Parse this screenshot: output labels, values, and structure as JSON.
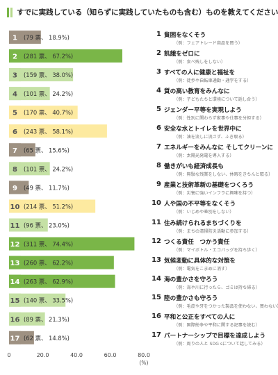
{
  "title": "すでに実践している（知らずに実践していたものも含む）ものを教えてください",
  "colors": {
    "green_dark": "#7ab648",
    "green_light": "#c5e1a5",
    "yellow": "#fdeaa0",
    "gray": "#9e9182",
    "label_box_green": "#7ab648"
  },
  "chart_data": {
    "type": "bar",
    "orientation": "horizontal",
    "categories": [
      "1",
      "2",
      "3",
      "4",
      "5",
      "6",
      "7",
      "8",
      "9",
      "10",
      "11",
      "12",
      "13",
      "14",
      "15",
      "16",
      "17"
    ],
    "votes": [
      79,
      281,
      159,
      101,
      170,
      243,
      65,
      101,
      49,
      214,
      96,
      311,
      260,
      263,
      140,
      89,
      62
    ],
    "values": [
      18.9,
      67.2,
      38.0,
      24.2,
      40.7,
      58.1,
      15.6,
      24.2,
      11.7,
      51.2,
      23.0,
      74.4,
      62.2,
      62.9,
      33.5,
      21.3,
      14.8
    ],
    "bar_labels": [
      "(79 票、 18.9%)",
      "(281 票、 67.2%)",
      "(159 票、 38.0%)",
      "(101 票、 24.2%)",
      "(170 票、 40.7%)",
      "(243 票、 58.1%)",
      "(65 票、 15.6%)",
      "(101 票、 24.2%)",
      "(49 票、 11.7%)",
      "(214 票、 51.2%)",
      "(96 票、 23.0%)",
      "(311 票、 74.4%)",
      "(260 票、 62.2%)",
      "(263 票、 62.9%)",
      "(140 票、 33.5%)",
      "(89 票、 21.3%)",
      "(62 票、 14.8%)"
    ],
    "bar_colors": [
      "#9e9182",
      "#7ab648",
      "#c5e1a5",
      "#c5e1a5",
      "#fdeaa0",
      "#fdeaa0",
      "#9e9182",
      "#c5e1a5",
      "#9e9182",
      "#fdeaa0",
      "#c5e1a5",
      "#7ab648",
      "#7ab648",
      "#7ab648",
      "#c5e1a5",
      "#c5e1a5",
      "#9e9182"
    ],
    "label_box_colors": [
      "#9e9182",
      "#7ab648",
      "#c5e1a5",
      "#c5e1a5",
      "#fdeaa0",
      "#fdeaa0",
      "#9e9182",
      "#c5e1a5",
      "#9e9182",
      "#fdeaa0",
      "#c5e1a5",
      "#7ab648",
      "#7ab648",
      "#7ab648",
      "#c5e1a5",
      "#c5e1a5",
      "#9e9182"
    ],
    "xlim": [
      0,
      80
    ],
    "xticks": [
      "0",
      "20.0",
      "40.0",
      "60.0",
      "80.0"
    ],
    "xlabel": "(%)",
    "grid": false
  },
  "goals": [
    {
      "num": "1",
      "title": "貧困をなくそう",
      "example": "（例：フェアトレード商品を買う）"
    },
    {
      "num": "2",
      "title": "飢餓をゼロに",
      "example": "（例：食べ残しをしない）"
    },
    {
      "num": "3",
      "title": "すべての人に健康と福祉を",
      "example": "（例：徒歩や自転車通勤・通学をする）"
    },
    {
      "num": "4",
      "title": "質の高い教育をみんなに",
      "example": "（例：子どもたちと環境について話し合う）"
    },
    {
      "num": "5",
      "title": "ジェンダー平等を実現しよう",
      "example": "（例：性別に関わらず家事や仕事を分担する）"
    },
    {
      "num": "6",
      "title": "安全な水とトイレを世界中に",
      "example": "（例：油を流しに流さず、ふき取る）"
    },
    {
      "num": "7",
      "title": "エネルギーをみんなに そしてクリーンに",
      "example": "（例：太陽光発電を導入する）"
    },
    {
      "num": "8",
      "title": "働きがいも経済成長も",
      "example": "（例：無駄な残業をしない、休暇をきちんと取る）"
    },
    {
      "num": "9",
      "title": "産業と技術革新の基礎をつくろう",
      "example": "（例：災害に強いインフラに興味を持つ）"
    },
    {
      "num": "10",
      "title": "人や国の不平等をなくそう",
      "example": "（例：いじめや差別をしない）"
    },
    {
      "num": "11",
      "title": "住み続けられるまちづくりを",
      "example": "（例：まちの清掃防災活動に参加する）"
    },
    {
      "num": "12",
      "title": "つくる責任　つかう責任",
      "example": "（例：マイボトル・エコバッグを持ち歩く）"
    },
    {
      "num": "13",
      "title": "気候変動に具体的な対策を",
      "example": "（例：電気をこまめに消す）"
    },
    {
      "num": "14",
      "title": "海の豊かさを守ろう",
      "example": "（例：海や川に行ったら、ゴミは持ち帰る）"
    },
    {
      "num": "15",
      "title": "陸の豊かさも守ろう",
      "example": "（例：毛皮や牙をつかった製品を使わない、買わない）"
    },
    {
      "num": "16",
      "title": "平和と公正をすべての人に",
      "example": "（例：国際紛争や平和に関する記事を読む）"
    },
    {
      "num": "17",
      "title": "パートナーシップで目標を達成しよう",
      "example": "（例：周りの人と SDG sについて話してみる）"
    }
  ]
}
